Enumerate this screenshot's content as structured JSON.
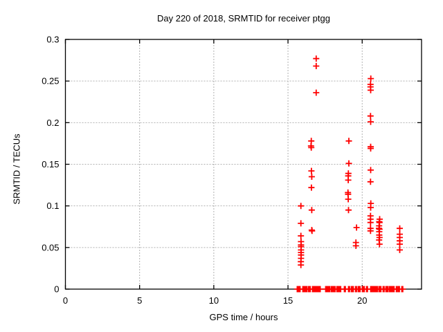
{
  "chart_data": {
    "type": "scatter",
    "title": "Day 220 of 2018, SRMTID for receiver ptgg",
    "xlabel": "GPS time / hours",
    "ylabel": "SRMTID / TECUs",
    "xlim": [
      0,
      24
    ],
    "ylim": [
      0,
      0.3
    ],
    "xticks": [
      0,
      5,
      10,
      15,
      20
    ],
    "xtick_labels": [
      "0",
      "5",
      "10",
      "15",
      "20"
    ],
    "yticks": [
      0,
      0.05,
      0.1,
      0.15,
      0.2,
      0.25,
      0.3
    ],
    "ytick_labels": [
      "0",
      "0.05",
      "0.1",
      "0.15",
      "0.2",
      "0.25",
      "0.3"
    ],
    "grid": true,
    "legend": "none",
    "marker": "plus",
    "marker_color": "#ff0000",
    "grid_color": "#b0b0b0",
    "border_color": "#000000",
    "series": [
      {
        "name": "SRMTID",
        "points": [
          [
            15.87,
            0.1
          ],
          [
            15.87,
            0.079
          ],
          [
            15.87,
            0.064
          ],
          [
            15.88,
            0.057
          ],
          [
            15.88,
            0.053
          ],
          [
            15.88,
            0.051
          ],
          [
            15.88,
            0.047
          ],
          [
            15.88,
            0.044
          ],
          [
            15.88,
            0.041
          ],
          [
            15.88,
            0.037
          ],
          [
            15.87,
            0.033
          ],
          [
            15.87,
            0.029
          ],
          [
            16.57,
            0.178
          ],
          [
            16.55,
            0.172
          ],
          [
            16.57,
            0.17
          ],
          [
            16.58,
            0.142
          ],
          [
            16.6,
            0.135
          ],
          [
            16.58,
            0.122
          ],
          [
            16.6,
            0.095
          ],
          [
            16.6,
            0.071
          ],
          [
            16.62,
            0.07
          ],
          [
            16.9,
            0.277
          ],
          [
            16.9,
            0.268
          ],
          [
            16.9,
            0.236
          ],
          [
            19.1,
            0.178
          ],
          [
            19.1,
            0.151
          ],
          [
            19.07,
            0.139
          ],
          [
            19.06,
            0.136
          ],
          [
            19.06,
            0.131
          ],
          [
            19.04,
            0.116
          ],
          [
            19.05,
            0.114
          ],
          [
            19.06,
            0.108
          ],
          [
            19.08,
            0.095
          ],
          [
            19.62,
            0.074
          ],
          [
            19.58,
            0.056
          ],
          [
            19.58,
            0.052
          ],
          [
            20.58,
            0.253
          ],
          [
            20.56,
            0.246
          ],
          [
            20.56,
            0.243
          ],
          [
            20.57,
            0.239
          ],
          [
            20.56,
            0.208
          ],
          [
            20.57,
            0.201
          ],
          [
            20.57,
            0.171
          ],
          [
            20.57,
            0.169
          ],
          [
            20.57,
            0.143
          ],
          [
            20.56,
            0.129
          ],
          [
            20.58,
            0.103
          ],
          [
            20.57,
            0.098
          ],
          [
            20.56,
            0.088
          ],
          [
            20.56,
            0.084
          ],
          [
            20.56,
            0.08
          ],
          [
            20.56,
            0.073
          ],
          [
            20.56,
            0.07
          ],
          [
            21.18,
            0.084
          ],
          [
            21.15,
            0.081
          ],
          [
            21.17,
            0.08
          ],
          [
            21.14,
            0.076
          ],
          [
            21.13,
            0.073
          ],
          [
            21.17,
            0.072
          ],
          [
            21.15,
            0.069
          ],
          [
            21.15,
            0.065
          ],
          [
            21.17,
            0.062
          ],
          [
            21.14,
            0.059
          ],
          [
            21.17,
            0.054
          ],
          [
            22.53,
            0.073
          ],
          [
            22.53,
            0.066
          ],
          [
            22.53,
            0.062
          ],
          [
            22.53,
            0.058
          ],
          [
            22.53,
            0.054
          ],
          [
            22.53,
            0.047
          ]
        ]
      }
    ],
    "baseline_rug_y": 0,
    "baseline_rug_segments": [
      [
        15.62,
        15.86
      ],
      [
        16.0,
        16.27
      ],
      [
        16.37,
        16.51
      ],
      [
        16.65,
        17.21
      ],
      [
        17.54,
        17.82
      ],
      [
        17.91,
        18.19
      ],
      [
        18.29,
        18.61
      ],
      [
        18.8,
        18.89
      ],
      [
        19.08,
        19.17
      ],
      [
        19.27,
        19.45
      ],
      [
        19.55,
        19.64
      ],
      [
        19.73,
        19.92
      ],
      [
        20.01,
        20.2
      ],
      [
        20.29,
        20.38
      ],
      [
        20.57,
        21.04
      ],
      [
        21.13,
        21.27
      ],
      [
        21.41,
        21.5
      ],
      [
        21.6,
        21.78
      ],
      [
        21.83,
        21.97
      ],
      [
        22.02,
        22.21
      ],
      [
        22.3,
        22.39
      ],
      [
        22.44,
        22.53
      ],
      [
        22.67,
        22.77
      ]
    ]
  }
}
